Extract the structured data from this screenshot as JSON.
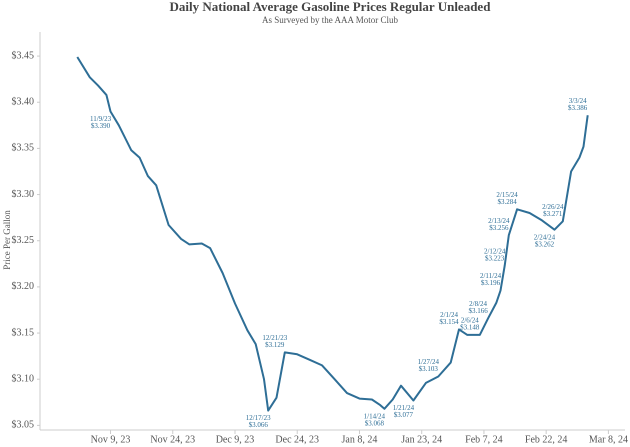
{
  "chart_data": {
    "type": "line",
    "title": "Daily National Average Gasoline Prices Regular Unleaded",
    "subtitle": "As Surveyed by the AAA Motor Club",
    "y_label": "Price Per Gallon",
    "color": "#2e6e96",
    "grid": false,
    "x": [
      "2023-11-01",
      "2023-11-04",
      "2023-11-06",
      "2023-11-08",
      "2023-11-09",
      "2023-11-11",
      "2023-11-14",
      "2023-11-16",
      "2023-11-18",
      "2023-11-20",
      "2023-11-23",
      "2023-11-26",
      "2023-11-28",
      "2023-12-01",
      "2023-12-03",
      "2023-12-06",
      "2023-12-09",
      "2023-12-12",
      "2023-12-14",
      "2023-12-16",
      "2023-12-17",
      "2023-12-19",
      "2023-12-21",
      "2023-12-24",
      "2023-12-27",
      "2023-12-30",
      "2024-01-02",
      "2024-01-05",
      "2024-01-08",
      "2024-01-11",
      "2024-01-13",
      "2024-01-14",
      "2024-01-16",
      "2024-01-18",
      "2024-01-21",
      "2024-01-24",
      "2024-01-27",
      "2024-01-30",
      "2024-02-01",
      "2024-02-03",
      "2024-02-06",
      "2024-02-08",
      "2024-02-10",
      "2024-02-11",
      "2024-02-12",
      "2024-02-13",
      "2024-02-15",
      "2024-02-18",
      "2024-02-21",
      "2024-02-24",
      "2024-02-26",
      "2024-02-28",
      "2024-03-01",
      "2024-03-02",
      "2024-03-03"
    ],
    "values": [
      3.449,
      3.427,
      3.418,
      3.408,
      3.39,
      3.375,
      3.348,
      3.34,
      3.32,
      3.31,
      3.267,
      3.252,
      3.246,
      3.247,
      3.242,
      3.215,
      3.182,
      3.153,
      3.138,
      3.1,
      3.066,
      3.08,
      3.129,
      3.127,
      3.121,
      3.115,
      3.1,
      3.085,
      3.079,
      3.078,
      3.072,
      3.068,
      3.078,
      3.093,
      3.077,
      3.096,
      3.103,
      3.118,
      3.154,
      3.148,
      3.148,
      3.166,
      3.183,
      3.196,
      3.223,
      3.256,
      3.284,
      3.28,
      3.272,
      3.262,
      3.271,
      3.325,
      3.34,
      3.352,
      3.386
    ],
    "date_labels": [
      null,
      null,
      null,
      null,
      "11/9/23",
      null,
      null,
      null,
      null,
      null,
      null,
      null,
      null,
      null,
      null,
      null,
      null,
      null,
      null,
      null,
      "12/17/23",
      null,
      "12/21/23",
      null,
      null,
      null,
      null,
      null,
      null,
      null,
      null,
      "1/14/24",
      null,
      null,
      "1/21/24",
      null,
      "1/27/24",
      null,
      "2/1/24",
      null,
      "2/6/24",
      "2/8/24",
      null,
      "2/11/24",
      "2/12/24",
      "2/13/24",
      "2/15/24",
      null,
      null,
      "2/24/24",
      "2/26/24",
      null,
      null,
      null,
      "3/3/24"
    ],
    "value_labels": [
      null,
      null,
      null,
      null,
      "$3.390",
      null,
      null,
      null,
      null,
      null,
      null,
      null,
      null,
      null,
      null,
      null,
      null,
      null,
      null,
      null,
      "$3.066",
      null,
      "$3.129",
      null,
      null,
      null,
      null,
      null,
      null,
      null,
      null,
      "$3.068",
      null,
      null,
      "$3.077",
      null,
      "$3.103",
      null,
      "$3.154",
      null,
      "$3.148",
      "$3.166",
      null,
      "$3.196",
      "$3.223",
      "$3.256",
      "$3.284",
      null,
      null,
      "$3.262",
      "$3.271",
      null,
      null,
      null,
      "$3.386"
    ],
    "xlim": [
      "2023-10-23",
      "2024-03-12"
    ],
    "xticks": [
      {
        "value": "2023-11-09",
        "label": "Nov 9, 23"
      },
      {
        "value": "2023-11-24",
        "label": "Nov 24, 23"
      },
      {
        "value": "2023-12-09",
        "label": "Dec 9, 23"
      },
      {
        "value": "2023-12-24",
        "label": "Dec 24, 23"
      },
      {
        "value": "2024-01-08",
        "label": "Jan 8, 24"
      },
      {
        "value": "2024-01-23",
        "label": "Jan 23, 24"
      },
      {
        "value": "2024-02-07",
        "label": "Feb 7, 24"
      },
      {
        "value": "2024-02-22",
        "label": "Feb 22, 24"
      },
      {
        "value": "2024-03-08",
        "label": "Mar 8, 24"
      }
    ],
    "ylim": [
      3.045,
      3.462
    ],
    "yticks": [
      {
        "value": 3.05,
        "label": "$3.05"
      },
      {
        "value": 3.1,
        "label": "$3.10"
      },
      {
        "value": 3.15,
        "label": "$3.15"
      },
      {
        "value": 3.2,
        "label": "$3.20"
      },
      {
        "value": 3.25,
        "label": "$3.25"
      },
      {
        "value": 3.3,
        "label": "$3.30"
      },
      {
        "value": 3.35,
        "label": "$3.35"
      },
      {
        "value": 3.4,
        "label": "$3.40"
      },
      {
        "value": 3.45,
        "label": "$3.45"
      }
    ]
  }
}
